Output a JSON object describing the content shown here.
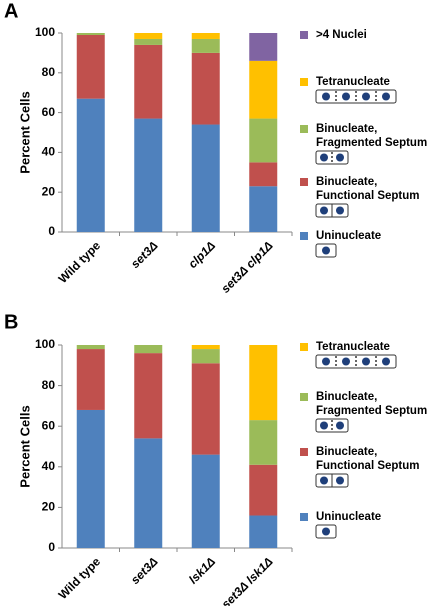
{
  "chart_data": [
    {
      "type": "bar",
      "stacked": true,
      "panel_label": "A",
      "y_label": "Percent Cells",
      "categories": [
        "Wild type",
        "set3Δ",
        "clp1Δ",
        "set3Δ clp1Δ"
      ],
      "series": [
        {
          "name": "Uninucleate",
          "color": "#4f81bd",
          "values": [
            67,
            57,
            54,
            23
          ]
        },
        {
          "name": "Binucleate, Functional Septum",
          "color": "#c0504d",
          "values": [
            32,
            37,
            36,
            12
          ]
        },
        {
          "name": "Binucleate, Fragmented Septum",
          "color": "#9bbb59",
          "values": [
            1,
            3,
            7,
            22
          ]
        },
        {
          "name": "Tetranucleate",
          "color": "#ffc000",
          "values": [
            0,
            3,
            3,
            29
          ]
        },
        {
          "name": ">4 Nuclei",
          "color": "#8064a2",
          "values": [
            0,
            0,
            0,
            14
          ]
        }
      ],
      "ylim": [
        0,
        100
      ],
      "yticks": [
        0,
        20,
        40,
        60,
        80,
        100
      ]
    },
    {
      "type": "bar",
      "stacked": true,
      "panel_label": "B",
      "y_label": "Percent Cells",
      "categories": [
        "Wild type",
        "set3Δ",
        "lsk1Δ",
        "set3Δ lsk1Δ"
      ],
      "series": [
        {
          "name": "Uninucleate",
          "color": "#4f81bd",
          "values": [
            68,
            54,
            46,
            16
          ]
        },
        {
          "name": "Binucleate, Functional Septum",
          "color": "#c0504d",
          "values": [
            30,
            42,
            45,
            25
          ]
        },
        {
          "name": "Binucleate, Fragmented Septum",
          "color": "#9bbb59",
          "values": [
            2,
            4,
            7,
            22
          ]
        },
        {
          "name": "Tetranucleate",
          "color": "#ffc000",
          "values": [
            0,
            0,
            2,
            37
          ]
        }
      ],
      "ylim": [
        0,
        100
      ],
      "yticks": [
        0,
        20,
        40,
        60,
        80,
        100
      ]
    }
  ]
}
